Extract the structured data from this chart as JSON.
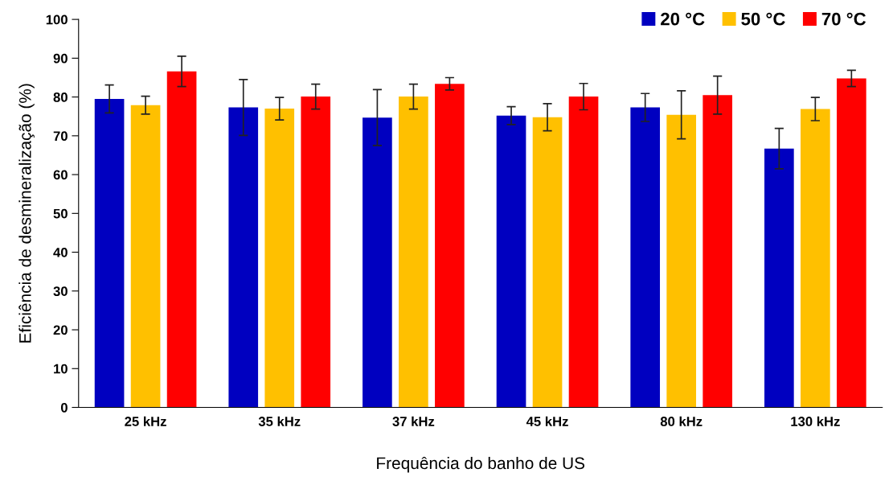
{
  "chart_data": {
    "type": "bar",
    "xlabel": "Frequência do banho de US",
    "ylabel": "Eficiência de desmineralização (%)",
    "categories": [
      "25 kHz",
      "35 kHz",
      "37 kHz",
      "45 kHz",
      "80 kHz",
      "130 kHz"
    ],
    "series": [
      {
        "name": "20 °C",
        "color": "#0000c0",
        "values": [
          79.5,
          77.3,
          74.7,
          75.2,
          77.3,
          66.7
        ],
        "errors": [
          3.6,
          7.2,
          7.2,
          2.3,
          3.6,
          5.2
        ]
      },
      {
        "name": "50 °C",
        "color": "#ffc000",
        "values": [
          77.9,
          77.0,
          80.1,
          74.8,
          75.4,
          76.9
        ],
        "errors": [
          2.3,
          2.9,
          3.2,
          3.5,
          6.2,
          3.0
        ]
      },
      {
        "name": "70 °C",
        "color": "#ff0000",
        "values": [
          86.6,
          80.1,
          83.4,
          80.1,
          80.5,
          84.8
        ],
        "errors": [
          3.9,
          3.2,
          1.6,
          3.4,
          4.9,
          2.1
        ]
      }
    ],
    "ylim": [
      0,
      100
    ],
    "yticks": [
      0,
      10,
      20,
      30,
      40,
      50,
      60,
      70,
      80,
      90,
      100
    ],
    "grid": false,
    "legend": "top right"
  }
}
